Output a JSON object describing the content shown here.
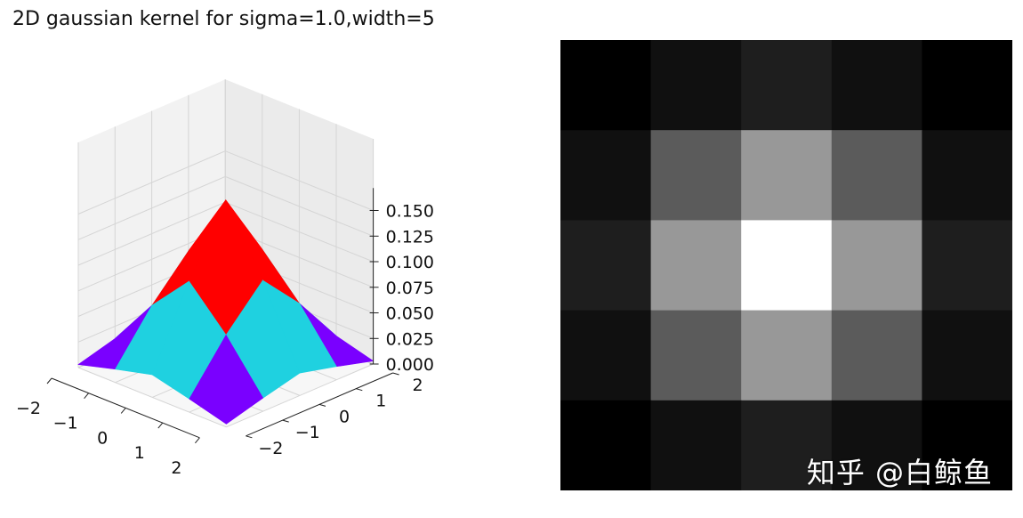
{
  "chart_data": [
    {
      "type": "surface",
      "title": "2D gaussian kernel for sigma=1.0,width=5",
      "sigma": 1.0,
      "width": 5,
      "x": [
        -2,
        -1,
        0,
        1,
        2
      ],
      "y": [
        -2,
        -1,
        0,
        1,
        2
      ],
      "z": [
        [
          0.003,
          0.013,
          0.022,
          0.013,
          0.003
        ],
        [
          0.013,
          0.06,
          0.098,
          0.06,
          0.013
        ],
        [
          0.022,
          0.098,
          0.162,
          0.098,
          0.022
        ],
        [
          0.013,
          0.06,
          0.098,
          0.06,
          0.013
        ],
        [
          0.003,
          0.013,
          0.022,
          0.013,
          0.003
        ]
      ],
      "x_ticks": [
        "−2",
        "−1",
        "0",
        "1",
        "2"
      ],
      "y_ticks": [
        "−2",
        "−1",
        "0",
        "1",
        "2"
      ],
      "z_ticks": [
        "0.000",
        "0.025",
        "0.050",
        "0.075",
        "0.100",
        "0.125",
        "0.150"
      ],
      "zlim": [
        0,
        0.16
      ],
      "colormap": "rainbow",
      "face_colors": {
        "low": "#7a00ff",
        "mid": "#1fd1e0",
        "high": "#ff0000"
      },
      "grid": true
    },
    {
      "type": "heatmap",
      "colormap": "gray",
      "rows": 5,
      "cols": 5,
      "values": [
        [
          0.003,
          0.013,
          0.022,
          0.013,
          0.003
        ],
        [
          0.013,
          0.06,
          0.098,
          0.06,
          0.013
        ],
        [
          0.022,
          0.098,
          0.162,
          0.098,
          0.022
        ],
        [
          0.013,
          0.06,
          0.098,
          0.06,
          0.013
        ],
        [
          0.003,
          0.013,
          0.022,
          0.013,
          0.003
        ]
      ]
    }
  ],
  "watermark": "知乎 @白鲸鱼"
}
